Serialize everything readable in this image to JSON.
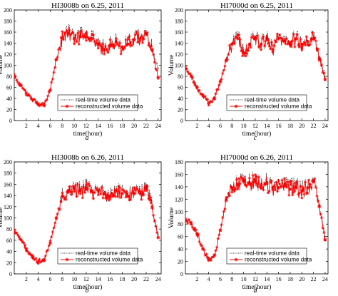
{
  "chart_data": [
    {
      "type": "line",
      "title": "HI3008b on 6.25, 2011",
      "caption": "a",
      "xlabel": "time(hour)",
      "ylabel": "Volume",
      "xlim": [
        0,
        24.5
      ],
      "ylim": [
        0,
        200
      ],
      "xticks": [
        2,
        4,
        6,
        8,
        10,
        12,
        14,
        16,
        18,
        20,
        22,
        24
      ],
      "yticks": [
        0,
        20,
        40,
        60,
        80,
        100,
        120,
        140,
        160,
        180,
        200
      ],
      "legend_position": "lower-center",
      "grid": false,
      "series": [
        {
          "name": "real-time volume data",
          "style": "dotted",
          "color": "#000000",
          "x": [
            0,
            1,
            2,
            3,
            4,
            5,
            6,
            7,
            8,
            9,
            10,
            11,
            12,
            13,
            14,
            15,
            16,
            17,
            18,
            19,
            20,
            21,
            22,
            23,
            24
          ],
          "y": [
            80,
            65,
            50,
            38,
            30,
            28,
            55,
            110,
            150,
            160,
            150,
            155,
            160,
            150,
            140,
            130,
            138,
            145,
            135,
            140,
            148,
            150,
            158,
            130,
            95
          ]
        },
        {
          "name": "reconstructed volume data",
          "style": "solid-star",
          "color": "#ff0000",
          "x": [
            0,
            1,
            2,
            3,
            4,
            5,
            6,
            7,
            8,
            9,
            10,
            11,
            12,
            13,
            14,
            15,
            16,
            17,
            18,
            19,
            20,
            21,
            22,
            23,
            24
          ],
          "y": [
            80,
            65,
            50,
            38,
            30,
            28,
            55,
            110,
            150,
            158,
            148,
            152,
            158,
            148,
            138,
            128,
            136,
            142,
            133,
            138,
            146,
            148,
            156,
            128,
            78
          ]
        }
      ]
    },
    {
      "type": "line",
      "title": "HI7000d on 6.25, 2011",
      "caption": "c",
      "xlabel": "time(hour)",
      "ylabel": "Volume",
      "xlim": [
        0,
        24.5
      ],
      "ylim": [
        0,
        200
      ],
      "xticks": [
        2,
        4,
        6,
        8,
        10,
        12,
        14,
        16,
        18,
        20,
        22,
        24
      ],
      "yticks": [
        0,
        20,
        40,
        60,
        80,
        100,
        120,
        140,
        160,
        180,
        200
      ],
      "legend_position": "lower-center",
      "grid": false,
      "series": [
        {
          "name": "real-time volume data",
          "style": "dotted",
          "color": "#000000",
          "x": [
            0,
            1,
            2,
            3,
            4,
            5,
            6,
            7,
            8,
            9,
            10,
            11,
            12,
            13,
            14,
            15,
            16,
            17,
            18,
            19,
            20,
            21,
            22,
            23,
            24
          ],
          "y": [
            95,
            80,
            60,
            45,
            32,
            40,
            70,
            110,
            140,
            150,
            125,
            140,
            150,
            140,
            150,
            130,
            150,
            145,
            140,
            150,
            140,
            145,
            150,
            115,
            80
          ]
        },
        {
          "name": "reconstructed volume data",
          "style": "solid-star",
          "color": "#ff0000",
          "x": [
            0,
            1,
            2,
            3,
            4,
            5,
            6,
            7,
            8,
            9,
            10,
            11,
            12,
            13,
            14,
            15,
            16,
            17,
            18,
            19,
            20,
            21,
            22,
            23,
            24
          ],
          "y": [
            95,
            80,
            60,
            45,
            32,
            40,
            70,
            108,
            138,
            148,
            122,
            138,
            148,
            138,
            148,
            128,
            148,
            143,
            138,
            148,
            138,
            143,
            148,
            112,
            75
          ]
        }
      ]
    },
    {
      "type": "line",
      "title": "HI3008b on 6.26, 2011",
      "caption": "b",
      "xlabel": "time(hour)",
      "ylabel": "Volume",
      "xlim": [
        0,
        24.5
      ],
      "ylim": [
        0,
        200
      ],
      "xticks": [
        2,
        4,
        6,
        8,
        10,
        12,
        14,
        16,
        18,
        20,
        22,
        24
      ],
      "yticks": [
        0,
        20,
        40,
        60,
        80,
        100,
        120,
        140,
        160,
        180,
        200
      ],
      "legend_position": "lower-center",
      "grid": false,
      "series": [
        {
          "name": "real-time volume data",
          "style": "dotted",
          "color": "#000000",
          "x": [
            0,
            1,
            2,
            3,
            4,
            5,
            6,
            7,
            8,
            9,
            10,
            11,
            12,
            13,
            14,
            15,
            16,
            17,
            18,
            19,
            20,
            21,
            22,
            23,
            24
          ],
          "y": [
            78,
            62,
            45,
            30,
            22,
            25,
            55,
            100,
            140,
            150,
            155,
            150,
            155,
            148,
            150,
            145,
            140,
            150,
            145,
            140,
            145,
            145,
            155,
            120,
            70
          ]
        },
        {
          "name": "reconstructed volume data",
          "style": "solid-star",
          "color": "#ff0000",
          "x": [
            0,
            1,
            2,
            3,
            4,
            5,
            6,
            7,
            8,
            9,
            10,
            11,
            12,
            13,
            14,
            15,
            16,
            17,
            18,
            19,
            20,
            21,
            22,
            23,
            24
          ],
          "y": [
            78,
            62,
            45,
            30,
            22,
            25,
            55,
            100,
            138,
            148,
            152,
            148,
            152,
            146,
            148,
            143,
            138,
            148,
            143,
            138,
            143,
            143,
            152,
            118,
            65
          ]
        }
      ]
    },
    {
      "type": "line",
      "title": "HI7000d on 6.26, 2011",
      "caption": "d",
      "xlabel": "time(hour)",
      "ylabel": "Volume",
      "xlim": [
        0,
        24.5
      ],
      "ylim": [
        0,
        180
      ],
      "xticks": [
        2,
        4,
        6,
        8,
        10,
        12,
        14,
        16,
        18,
        20,
        22,
        24
      ],
      "yticks": [
        0,
        20,
        40,
        60,
        80,
        100,
        120,
        140,
        160,
        180
      ],
      "legend_position": "lower-center",
      "grid": false,
      "series": [
        {
          "name": "real-time volume data",
          "style": "dotted",
          "color": "#000000",
          "x": [
            0,
            1,
            2,
            3,
            4,
            5,
            6,
            7,
            8,
            9,
            10,
            11,
            12,
            13,
            14,
            15,
            16,
            17,
            18,
            19,
            20,
            21,
            22,
            23,
            24
          ],
          "y": [
            88,
            80,
            65,
            40,
            22,
            30,
            70,
            120,
            140,
            145,
            150,
            148,
            150,
            145,
            148,
            140,
            140,
            145,
            138,
            140,
            135,
            140,
            150,
            110,
            60
          ]
        },
        {
          "name": "reconstructed volume data",
          "style": "solid-star",
          "color": "#ff0000",
          "x": [
            0,
            1,
            2,
            3,
            4,
            5,
            6,
            7,
            8,
            9,
            10,
            11,
            12,
            13,
            14,
            15,
            16,
            17,
            18,
            19,
            20,
            21,
            22,
            23,
            24
          ],
          "y": [
            88,
            80,
            65,
            40,
            22,
            30,
            70,
            118,
            138,
            143,
            148,
            146,
            148,
            143,
            146,
            138,
            138,
            143,
            136,
            138,
            133,
            138,
            148,
            108,
            55
          ]
        }
      ]
    }
  ]
}
